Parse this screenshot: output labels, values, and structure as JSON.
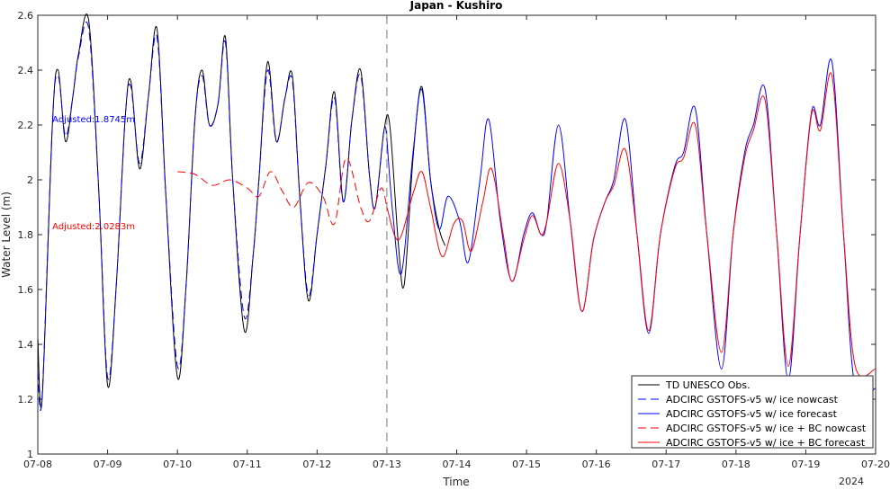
{
  "chart_data": {
    "type": "line",
    "title": "Japan - Kushiro",
    "xlabel": "Time",
    "ylabel": "Water Level (m)",
    "x_tick_labels": [
      "07-08",
      "07-09",
      "07-10",
      "07-11",
      "07-12",
      "07-13",
      "07-14",
      "07-15",
      "07-16",
      "07-17",
      "07-18",
      "07-19",
      "07-20"
    ],
    "x_year_label": "2024",
    "xlim_days": [
      0,
      12
    ],
    "ylim": [
      1,
      2.6
    ],
    "y_ticks": [
      1,
      1.2,
      1.4,
      1.6,
      1.8,
      2,
      2.2,
      2.4,
      2.6
    ],
    "y_tick_labels": [
      "1",
      "1.2",
      "1.4",
      "1.6",
      "1.8",
      "2",
      "2.2",
      "2.4",
      "2.6"
    ],
    "nowcast_forecast_divider": "07-13",
    "legend_position": "bottom-right",
    "annotations": [
      {
        "text": "Adjusted:1.8745m",
        "color": "#0000ff",
        "x": "07-08 05:00",
        "y": 2.21
      },
      {
        "text": "Adjusted:2.0283m",
        "color": "#ff0000",
        "x": "07-08 05:00",
        "y": 1.82
      }
    ],
    "series": [
      {
        "name": "TD UNESCO Obs.",
        "color": "#000000",
        "dash": "solid",
        "points": [
          [
            "07-08 00:00",
            1.42
          ],
          [
            "07-08 01:30",
            1.2
          ],
          [
            "07-08 05:00",
            2.2
          ],
          [
            "07-08 07:00",
            2.4
          ],
          [
            "07-08 09:30",
            2.14
          ],
          [
            "07-08 12:00",
            2.3
          ],
          [
            "07-08 14:00",
            2.46
          ],
          [
            "07-08 17:30",
            2.58
          ],
          [
            "07-08 21:00",
            1.95
          ],
          [
            "07-09 00:00",
            1.25
          ],
          [
            "07-09 03:00",
            1.62
          ],
          [
            "07-09 06:00",
            2.22
          ],
          [
            "07-09 08:00",
            2.36
          ],
          [
            "07-09 11:00",
            2.04
          ],
          [
            "07-09 14:00",
            2.3
          ],
          [
            "07-09 17:00",
            2.55
          ],
          [
            "07-09 20:00",
            1.95
          ],
          [
            "07-10 00:00",
            1.28
          ],
          [
            "07-10 03:00",
            1.62
          ],
          [
            "07-10 06:00",
            2.22
          ],
          [
            "07-10 08:30",
            2.4
          ],
          [
            "07-10 11:00",
            2.2
          ],
          [
            "07-10 14:00",
            2.28
          ],
          [
            "07-10 16:30",
            2.52
          ],
          [
            "07-10 19:00",
            2.0
          ],
          [
            "07-10 23:00",
            1.45
          ],
          [
            "07-11 02:00",
            1.72
          ],
          [
            "07-11 04:00",
            2.0
          ],
          [
            "07-11 07:00",
            2.43
          ],
          [
            "07-11 10:00",
            2.14
          ],
          [
            "07-11 13:00",
            2.3
          ],
          [
            "07-11 15:30",
            2.38
          ],
          [
            "07-11 18:00",
            1.95
          ],
          [
            "07-11 21:00",
            1.56
          ],
          [
            "07-12 00:00",
            1.8
          ],
          [
            "07-12 03:00",
            2.05
          ],
          [
            "07-12 06:00",
            2.32
          ],
          [
            "07-12 09:00",
            1.92
          ],
          [
            "07-12 12:00",
            2.22
          ],
          [
            "07-12 15:00",
            2.4
          ],
          [
            "07-12 18:00",
            2.02
          ],
          [
            "07-12 20:00",
            1.9
          ],
          [
            "07-12 23:00",
            2.18
          ],
          [
            "07-13 01:00",
            2.2
          ],
          [
            "07-13 04:00",
            1.76
          ],
          [
            "07-13 06:00",
            1.62
          ],
          [
            "07-13 09:00",
            2.08
          ],
          [
            "07-13 12:00",
            2.34
          ],
          [
            "07-13 15:00",
            2.0
          ],
          [
            "07-13 18:00",
            1.82
          ],
          [
            "07-13 20:00",
            1.76
          ]
        ]
      },
      {
        "name": "ADCIRC GSTOFS-v5 w/ ice nowcast",
        "color": "#0000ff",
        "dash": "dashed",
        "points": [
          [
            "07-08 00:00",
            1.3
          ],
          [
            "07-08 01:30",
            1.21
          ],
          [
            "07-08 05:00",
            2.2
          ],
          [
            "07-08 07:00",
            2.38
          ],
          [
            "07-08 09:30",
            2.16
          ],
          [
            "07-08 12:00",
            2.3
          ],
          [
            "07-08 14:00",
            2.45
          ],
          [
            "07-08 17:30",
            2.55
          ],
          [
            "07-08 21:00",
            1.95
          ],
          [
            "07-09 00:00",
            1.28
          ],
          [
            "07-09 03:00",
            1.62
          ],
          [
            "07-09 06:00",
            2.22
          ],
          [
            "07-09 08:00",
            2.34
          ],
          [
            "07-09 11:00",
            2.06
          ],
          [
            "07-09 14:00",
            2.3
          ],
          [
            "07-09 17:00",
            2.52
          ],
          [
            "07-09 20:00",
            1.95
          ],
          [
            "07-10 00:00",
            1.32
          ],
          [
            "07-10 03:00",
            1.62
          ],
          [
            "07-10 06:00",
            2.22
          ],
          [
            "07-10 08:30",
            2.38
          ],
          [
            "07-10 11:00",
            2.2
          ],
          [
            "07-10 14:00",
            2.28
          ],
          [
            "07-10 16:30",
            2.5
          ],
          [
            "07-10 19:00",
            2.0
          ],
          [
            "07-10 23:00",
            1.5
          ],
          [
            "07-11 02:00",
            1.72
          ],
          [
            "07-11 04:00",
            2.0
          ],
          [
            "07-11 07:00",
            2.4
          ],
          [
            "07-11 10:00",
            2.14
          ],
          [
            "07-11 13:00",
            2.3
          ],
          [
            "07-11 15:30",
            2.36
          ],
          [
            "07-11 18:00",
            1.95
          ],
          [
            "07-11 21:00",
            1.58
          ],
          [
            "07-12 00:00",
            1.8
          ],
          [
            "07-12 03:00",
            2.05
          ],
          [
            "07-12 06:00",
            2.3
          ],
          [
            "07-12 09:00",
            1.92
          ],
          [
            "07-12 12:00",
            2.22
          ],
          [
            "07-12 15:00",
            2.38
          ],
          [
            "07-12 18:00",
            2.02
          ],
          [
            "07-12 20:00",
            1.9
          ],
          [
            "07-12 23:00",
            2.18
          ],
          [
            "07-13 00:00",
            2.15
          ]
        ]
      },
      {
        "name": "ADCIRC GSTOFS-v5 w/ ice forecast",
        "color": "#0000ff",
        "dash": "solid",
        "points": [
          [
            "07-13 00:00",
            2.15
          ],
          [
            "07-13 02:00",
            1.88
          ],
          [
            "07-13 05:00",
            1.66
          ],
          [
            "07-13 09:00",
            2.1
          ],
          [
            "07-13 12:00",
            2.33
          ],
          [
            "07-13 15:00",
            2.0
          ],
          [
            "07-13 18:00",
            1.82
          ],
          [
            "07-13 21:00",
            1.94
          ],
          [
            "07-14 01:00",
            1.85
          ],
          [
            "07-14 04:00",
            1.7
          ],
          [
            "07-14 08:00",
            2.0
          ],
          [
            "07-14 11:00",
            2.22
          ],
          [
            "07-14 15:00",
            1.85
          ],
          [
            "07-14 19:00",
            1.63
          ],
          [
            "07-14 23:00",
            1.8
          ],
          [
            "07-15 02:00",
            1.88
          ],
          [
            "07-15 05:00",
            1.8
          ],
          [
            "07-15 07:00",
            1.85
          ],
          [
            "07-15 11:00",
            2.2
          ],
          [
            "07-15 15:00",
            1.85
          ],
          [
            "07-15 19:00",
            1.52
          ],
          [
            "07-15 23:00",
            1.78
          ],
          [
            "07-16 03:00",
            1.92
          ],
          [
            "07-16 06:00",
            2.0
          ],
          [
            "07-16 10:00",
            2.22
          ],
          [
            "07-16 14:00",
            1.8
          ],
          [
            "07-16 18:00",
            1.44
          ],
          [
            "07-16 22:00",
            1.8
          ],
          [
            "07-17 03:00",
            2.05
          ],
          [
            "07-17 06:00",
            2.1
          ],
          [
            "07-17 10:00",
            2.26
          ],
          [
            "07-17 14:00",
            1.8
          ],
          [
            "07-17 19:00",
            1.31
          ],
          [
            "07-17 23:00",
            1.8
          ],
          [
            "07-18 03:00",
            2.1
          ],
          [
            "07-18 06:00",
            2.2
          ],
          [
            "07-18 10:00",
            2.33
          ],
          [
            "07-18 14:00",
            1.8
          ],
          [
            "07-18 18:00",
            1.27
          ],
          [
            "07-18 22:00",
            1.8
          ],
          [
            "07-19 02:00",
            2.25
          ],
          [
            "07-19 05:00",
            2.2
          ],
          [
            "07-19 09:00",
            2.43
          ],
          [
            "07-19 13:00",
            1.8
          ],
          [
            "07-19 17:00",
            1.24
          ],
          [
            "07-20 00:00",
            1.24
          ]
        ]
      },
      {
        "name": "ADCIRC GSTOFS-v5 w/ ice + BC nowcast",
        "color": "#ff0000",
        "dash": "dashed",
        "points": [
          [
            "07-10 00:00",
            2.03
          ],
          [
            "07-10 06:00",
            2.02
          ],
          [
            "07-10 12:00",
            1.98
          ],
          [
            "07-10 18:00",
            2.0
          ],
          [
            "07-11 00:00",
            1.97
          ],
          [
            "07-11 04:00",
            1.94
          ],
          [
            "07-11 08:00",
            2.03
          ],
          [
            "07-11 12:00",
            1.96
          ],
          [
            "07-11 16:00",
            1.9
          ],
          [
            "07-11 21:00",
            1.99
          ],
          [
            "07-12 02:00",
            1.94
          ],
          [
            "07-12 06:00",
            1.84
          ],
          [
            "07-12 10:00",
            2.08
          ],
          [
            "07-12 15:00",
            1.9
          ],
          [
            "07-12 18:00",
            1.85
          ],
          [
            "07-12 22:00",
            1.97
          ],
          [
            "07-13 00:00",
            1.9
          ]
        ]
      },
      {
        "name": "ADCIRC GSTOFS-v5 w/ ice + BC forecast",
        "color": "#ff0000",
        "dash": "solid",
        "points": [
          [
            "07-13 00:00",
            1.9
          ],
          [
            "07-13 04:00",
            1.78
          ],
          [
            "07-13 09:00",
            1.95
          ],
          [
            "07-13 12:00",
            2.03
          ],
          [
            "07-13 15:00",
            1.9
          ],
          [
            "07-13 19:00",
            1.72
          ],
          [
            "07-13 23:00",
            1.84
          ],
          [
            "07-14 02:00",
            1.85
          ],
          [
            "07-14 05:00",
            1.74
          ],
          [
            "07-14 09:00",
            1.92
          ],
          [
            "07-14 12:00",
            2.04
          ],
          [
            "07-14 16:00",
            1.8
          ],
          [
            "07-14 19:00",
            1.63
          ],
          [
            "07-14 23:00",
            1.78
          ],
          [
            "07-15 02:00",
            1.87
          ],
          [
            "07-15 05:00",
            1.8
          ],
          [
            "07-15 07:00",
            1.85
          ],
          [
            "07-15 11:00",
            2.06
          ],
          [
            "07-15 15:00",
            1.85
          ],
          [
            "07-15 19:00",
            1.52
          ],
          [
            "07-15 23:00",
            1.78
          ],
          [
            "07-16 03:00",
            1.92
          ],
          [
            "07-16 06:00",
            1.98
          ],
          [
            "07-16 10:00",
            2.11
          ],
          [
            "07-16 14:00",
            1.8
          ],
          [
            "07-16 18:00",
            1.45
          ],
          [
            "07-16 22:00",
            1.8
          ],
          [
            "07-17 03:00",
            2.04
          ],
          [
            "07-17 06:00",
            2.08
          ],
          [
            "07-17 10:00",
            2.2
          ],
          [
            "07-17 14:00",
            1.8
          ],
          [
            "07-17 19:00",
            1.37
          ],
          [
            "07-17 23:00",
            1.8
          ],
          [
            "07-18 03:00",
            2.08
          ],
          [
            "07-18 06:00",
            2.18
          ],
          [
            "07-18 10:00",
            2.29
          ],
          [
            "07-18 14:00",
            1.8
          ],
          [
            "07-18 18:00",
            1.32
          ],
          [
            "07-18 22:00",
            1.8
          ],
          [
            "07-19 02:00",
            2.24
          ],
          [
            "07-19 05:00",
            2.18
          ],
          [
            "07-19 09:00",
            2.38
          ],
          [
            "07-19 13:00",
            1.8
          ],
          [
            "07-19 17:00",
            1.32
          ],
          [
            "07-20 00:00",
            1.31
          ]
        ]
      }
    ]
  }
}
